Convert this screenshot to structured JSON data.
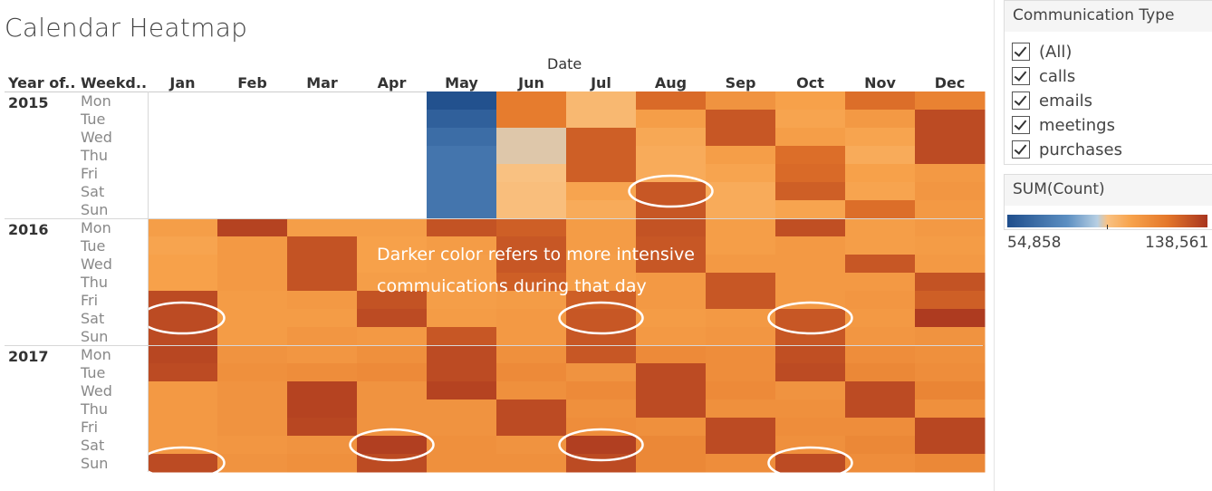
{
  "title": "Calendar Heatmap",
  "column_group_label": "Date",
  "row_headers": {
    "year": "Year of..",
    "weekday": "Weekd.."
  },
  "annotation": {
    "line1": "Darker color refers to more intensive",
    "line2": "commuications during that day"
  },
  "filter": {
    "title": "Communication Type",
    "items": [
      "(All)",
      "calls",
      "emails",
      "meetings",
      "purchases"
    ],
    "checked": [
      true,
      true,
      true,
      true,
      true
    ]
  },
  "legend": {
    "title": "SUM(Count)",
    "min_label": "54,858",
    "max_label": "138,561"
  },
  "colors": {
    "low": "#1f4e8c",
    "mid_low": "#5c8fc2",
    "mid": "#f9c283",
    "mid_high": "#e4772a",
    "high": "#a8351f",
    "highlight_circle": "#ffffff"
  },
  "chart_data": {
    "type": "heatmap",
    "title": "Calendar Heatmap",
    "x_axis_title": "Date",
    "months": [
      "Jan",
      "Feb",
      "Mar",
      "Apr",
      "May",
      "Jun",
      "Jul",
      "Aug",
      "Sep",
      "Oct",
      "Nov",
      "Dec"
    ],
    "weekdays": [
      "Mon",
      "Tue",
      "Wed",
      "Thu",
      "Fri",
      "Sat",
      "Sun"
    ],
    "years": [
      "2015",
      "2016",
      "2017"
    ],
    "value_range": [
      54858,
      138561
    ],
    "values": {
      "2015": [
        [
          null,
          null,
          null,
          null,
          56000,
          120000,
          100000,
          125000,
          112000,
          107000,
          124000,
          118000
        ],
        [
          null,
          null,
          null,
          null,
          62000,
          120000,
          100000,
          108000,
          130000,
          106000,
          110000,
          133000
        ],
        [
          null,
          null,
          null,
          null,
          67000,
          95000,
          128000,
          105000,
          130000,
          108000,
          106000,
          133000
        ],
        [
          null,
          null,
          null,
          null,
          70000,
          95000,
          128000,
          104000,
          108000,
          124000,
          104000,
          133000
        ],
        [
          null,
          null,
          null,
          null,
          70000,
          97000,
          128000,
          104000,
          106000,
          125000,
          107000,
          110000
        ],
        [
          null,
          null,
          null,
          null,
          70000,
          98000,
          106000,
          130000,
          104000,
          128000,
          106000,
          111000
        ],
        [
          null,
          null,
          null,
          null,
          70000,
          98000,
          104000,
          130000,
          104000,
          106000,
          124000,
          110000
        ]
      ],
      "2016": [
        [
          108000,
          135000,
          108000,
          108000,
          131000,
          128000,
          109000,
          131000,
          108000,
          132000,
          108000,
          110000
        ],
        [
          106000,
          110000,
          131000,
          107000,
          109000,
          130000,
          109000,
          130000,
          108000,
          110000,
          108000,
          109000
        ],
        [
          107000,
          110000,
          131000,
          107000,
          108000,
          130000,
          108000,
          130000,
          110000,
          110000,
          130000,
          110000
        ],
        [
          107000,
          110000,
          131000,
          108000,
          108000,
          128000,
          108000,
          110000,
          130000,
          110000,
          110000,
          131000
        ],
        [
          133000,
          109000,
          110000,
          131000,
          108000,
          109000,
          128000,
          110000,
          130000,
          110000,
          111000,
          128000
        ],
        [
          133000,
          109000,
          109000,
          133000,
          109000,
          110000,
          130000,
          109000,
          110000,
          130000,
          110000,
          137000
        ],
        [
          133000,
          109000,
          111000,
          110000,
          130000,
          110000,
          130000,
          110000,
          111000,
          130000,
          111000,
          112000
        ]
      ],
      "2017": [
        [
          134000,
          112000,
          111000,
          113000,
          133000,
          113000,
          130000,
          115000,
          114000,
          132000,
          114000,
          113000
        ],
        [
          133000,
          113000,
          114000,
          115000,
          133000,
          115000,
          112000,
          133000,
          114000,
          133000,
          116000,
          114000
        ],
        [
          110000,
          112000,
          135000,
          112000,
          135000,
          113000,
          115000,
          133000,
          115000,
          112000,
          133000,
          117000
        ],
        [
          110000,
          112000,
          135000,
          112000,
          112000,
          133000,
          113000,
          133000,
          113000,
          113000,
          133000,
          113000
        ],
        [
          110000,
          112000,
          134000,
          112000,
          112000,
          133000,
          114000,
          113000,
          133000,
          114000,
          114000,
          134000
        ],
        [
          110000,
          111000,
          112000,
          136000,
          113000,
          112000,
          136000,
          116000,
          133000,
          113000,
          116000,
          134000
        ],
        [
          133000,
          112000,
          113000,
          133000,
          113000,
          113000,
          133000,
          116000,
          114000,
          133000,
          114000,
          116000
        ]
      ]
    },
    "highlights": [
      {
        "year": "2015",
        "month": "Aug",
        "weekday": "Sat"
      },
      {
        "year": "2016",
        "month": "Jan",
        "weekday": "Sat"
      },
      {
        "year": "2016",
        "month": "Jul",
        "weekday": "Sat"
      },
      {
        "year": "2016",
        "month": "Oct",
        "weekday": "Sat"
      },
      {
        "year": "2017",
        "month": "Jan",
        "weekday": "Sun"
      },
      {
        "year": "2017",
        "month": "Apr",
        "weekday": "Sat"
      },
      {
        "year": "2017",
        "month": "Jul",
        "weekday": "Sat"
      },
      {
        "year": "2017",
        "month": "Oct",
        "weekday": "Sun"
      }
    ]
  }
}
